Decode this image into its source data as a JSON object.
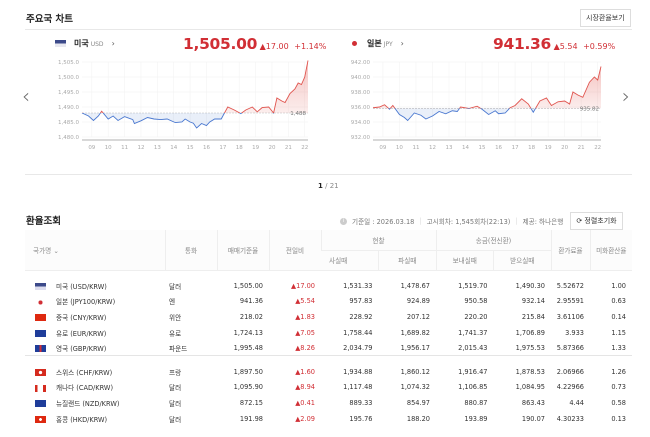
{
  "header": {
    "title": "주요국 차트",
    "market_button": "시장환율보기"
  },
  "pager": {
    "current": "1",
    "total": "/ 21"
  },
  "charts": [
    {
      "country": "미국",
      "code": "USD",
      "price": "1,505.00",
      "change": "▲17.00",
      "change_pct": "+1.14%",
      "baseline_label": "1,488",
      "baseline": 1488,
      "ylim": [
        1480,
        1505
      ],
      "yticks": [
        "1,505.0",
        "1,500.0",
        "1,495.0",
        "1,490.0",
        "1,485.0",
        "1,480.0"
      ],
      "ytick_values": [
        1505,
        1500,
        1495,
        1490,
        1485,
        1480
      ],
      "xticks": [
        "09",
        "10",
        "11",
        "12",
        "13",
        "14",
        "15",
        "16",
        "17",
        "18",
        "19",
        "20",
        "21",
        "22"
      ],
      "xlim": [
        8.4,
        22.2
      ],
      "type": "line",
      "up_color": "#e0554f",
      "down_color": "#4a78d0",
      "points": [
        [
          8.4,
          1488
        ],
        [
          8.8,
          1487
        ],
        [
          9.1,
          1485.5
        ],
        [
          9.4,
          1487
        ],
        [
          9.6,
          1488.6
        ],
        [
          10,
          1486
        ],
        [
          10.3,
          1487
        ],
        [
          10.6,
          1485.5
        ],
        [
          11,
          1486.8
        ],
        [
          11.5,
          1485.8
        ],
        [
          11.6,
          1484.5
        ],
        [
          12,
          1485.4
        ],
        [
          12.4,
          1486.5
        ],
        [
          12.8,
          1486
        ],
        [
          13.2,
          1485.8
        ],
        [
          13.6,
          1486
        ],
        [
          14.1,
          1484.8
        ],
        [
          14.5,
          1485
        ],
        [
          14.7,
          1486
        ],
        [
          15,
          1485
        ],
        [
          15.2,
          1484.6
        ],
        [
          15.4,
          1483
        ],
        [
          15.7,
          1484.5
        ],
        [
          16,
          1483.8
        ],
        [
          16.2,
          1485
        ],
        [
          16.5,
          1486
        ],
        [
          16.9,
          1486
        ],
        [
          17.3,
          1490
        ],
        [
          17.7,
          1489
        ],
        [
          18.1,
          1487.8
        ],
        [
          18.4,
          1489
        ],
        [
          18.8,
          1490
        ],
        [
          19.1,
          1488.4
        ],
        [
          19.4,
          1489.8
        ],
        [
          19.8,
          1490
        ],
        [
          20.1,
          1488
        ],
        [
          20.3,
          1493
        ],
        [
          20.6,
          1492
        ],
        [
          20.8,
          1491.5
        ],
        [
          21.1,
          1494.5
        ],
        [
          21.4,
          1496
        ],
        [
          21.6,
          1498
        ],
        [
          21.8,
          1497.5
        ],
        [
          22,
          1500
        ],
        [
          22.2,
          1505.5
        ]
      ]
    },
    {
      "country": "일본",
      "code": "JPY",
      "price": "941.36",
      "change": "▲5.54",
      "change_pct": "+0.59%",
      "baseline_label": "935.82",
      "baseline": 935.82,
      "ylim": [
        932,
        942
      ],
      "yticks": [
        "942.00",
        "940.00",
        "938.00",
        "936.00",
        "934.00",
        "932.00"
      ],
      "ytick_values": [
        942,
        940,
        938,
        936,
        934,
        932
      ],
      "xticks": [
        "09",
        "10",
        "11",
        "12",
        "13",
        "14",
        "15",
        "16",
        "17",
        "18",
        "19",
        "20",
        "21",
        "22"
      ],
      "xlim": [
        8.4,
        22.2
      ],
      "type": "line",
      "up_color": "#e0554f",
      "down_color": "#4a78d0",
      "points": [
        [
          8.4,
          935.9
        ],
        [
          8.8,
          936
        ],
        [
          9.1,
          936.3
        ],
        [
          9.4,
          935.7
        ],
        [
          9.6,
          936.2
        ],
        [
          10,
          935
        ],
        [
          10.3,
          934.6
        ],
        [
          10.5,
          934.2
        ],
        [
          10.9,
          935.2
        ],
        [
          11.3,
          934.9
        ],
        [
          11.6,
          934.4
        ],
        [
          12,
          934.8
        ],
        [
          12.4,
          935.4
        ],
        [
          12.8,
          935.1
        ],
        [
          13.2,
          935.5
        ],
        [
          13.5,
          935.4
        ],
        [
          13.7,
          936
        ],
        [
          14.2,
          935.8
        ],
        [
          14.7,
          936.1
        ],
        [
          15,
          935.7
        ],
        [
          15.4,
          935
        ],
        [
          15.8,
          935.5
        ],
        [
          16,
          935.1
        ],
        [
          16.4,
          935.2
        ],
        [
          16.7,
          935.9
        ],
        [
          17,
          936.2
        ],
        [
          17.4,
          937.1
        ],
        [
          17.8,
          936.4
        ],
        [
          18.1,
          935.3
        ],
        [
          18.5,
          936.8
        ],
        [
          18.9,
          937.2
        ],
        [
          19.2,
          936.2
        ],
        [
          19.6,
          936.7
        ],
        [
          20,
          936.8
        ],
        [
          20.3,
          936.4
        ],
        [
          20.5,
          938
        ],
        [
          20.8,
          937.6
        ],
        [
          21.1,
          937.3
        ],
        [
          21.5,
          939.3
        ],
        [
          21.8,
          940
        ],
        [
          22,
          939.6
        ],
        [
          22.2,
          941.4
        ]
      ]
    }
  ],
  "rates": {
    "title": "환율조회",
    "info": {
      "date": "기준일 : 2026.03.18",
      "round": "고시회차: 1,545회차(22:13)",
      "provider": "제공: 하나은행",
      "reset_button": "정렬초기화"
    },
    "headers": {
      "country": "국가명",
      "currency": "통화",
      "base": "매매기준율",
      "diff": "전일비",
      "cash": "현찰",
      "cash_buy": "사실때",
      "cash_sell": "파실때",
      "wire": "송금(전신환)",
      "wire_send": "보내실때",
      "wire_recv": "받으실때",
      "fee": "환가료율",
      "usd": "미화환산율"
    },
    "groups": [
      [
        {
          "flag": "us",
          "name": "미국 (USD/KRW)",
          "cur": "달러",
          "base": "1,505.00",
          "diff": "▲17.00",
          "cb": "1,531.33",
          "cs": "1,478.67",
          "ws": "1,519.70",
          "wr": "1,490.30",
          "fee": "5.52672",
          "usd": "1.00"
        },
        {
          "flag": "jp",
          "name": "일본 (JPY100/KRW)",
          "cur": "엔",
          "base": "941.36",
          "diff": "▲5.54",
          "cb": "957.83",
          "cs": "924.89",
          "ws": "950.58",
          "wr": "932.14",
          "fee": "2.95591",
          "usd": "0.63"
        },
        {
          "flag": "cn",
          "name": "중국 (CNY/KRW)",
          "cur": "위안",
          "base": "218.02",
          "diff": "▲1.83",
          "cb": "228.92",
          "cs": "207.12",
          "ws": "220.20",
          "wr": "215.84",
          "fee": "3.61106",
          "usd": "0.14"
        },
        {
          "flag": "eu",
          "name": "유로 (EUR/KRW)",
          "cur": "유로",
          "base": "1,724.13",
          "diff": "▲7.05",
          "cb": "1,758.44",
          "cs": "1,689.82",
          "ws": "1,741.37",
          "wr": "1,706.89",
          "fee": "3.933",
          "usd": "1.15"
        },
        {
          "flag": "gb",
          "name": "영국 (GBP/KRW)",
          "cur": "파운드",
          "base": "1,995.48",
          "diff": "▲8.26",
          "cb": "2,034.79",
          "cs": "1,956.17",
          "ws": "2,015.43",
          "wr": "1,975.53",
          "fee": "5.87366",
          "usd": "1.33"
        }
      ],
      [
        {
          "flag": "ch",
          "name": "스위스 (CHF/KRW)",
          "cur": "프랑",
          "base": "1,897.50",
          "diff": "▲1.60",
          "cb": "1,934.88",
          "cs": "1,860.12",
          "ws": "1,916.47",
          "wr": "1,878.53",
          "fee": "2.06966",
          "usd": "1.26"
        },
        {
          "flag": "ca",
          "name": "캐나다 (CAD/KRW)",
          "cur": "달러",
          "base": "1,095.90",
          "diff": "▲8.94",
          "cb": "1,117.48",
          "cs": "1,074.32",
          "ws": "1,106.85",
          "wr": "1,084.95",
          "fee": "4.22966",
          "usd": "0.73"
        },
        {
          "flag": "nz",
          "name": "뉴질랜드 (NZD/KRW)",
          "cur": "달러",
          "base": "872.15",
          "diff": "▲0.41",
          "cb": "889.33",
          "cs": "854.97",
          "ws": "880.87",
          "wr": "863.43",
          "fee": "4.44",
          "usd": "0.58"
        },
        {
          "flag": "hk",
          "name": "홍콩 (HKD/KRW)",
          "cur": "달러",
          "base": "191.98",
          "diff": "▲2.09",
          "cb": "195.76",
          "cs": "188.20",
          "ws": "193.89",
          "wr": "190.07",
          "fee": "4.30233",
          "usd": "0.13"
        }
      ]
    ]
  }
}
